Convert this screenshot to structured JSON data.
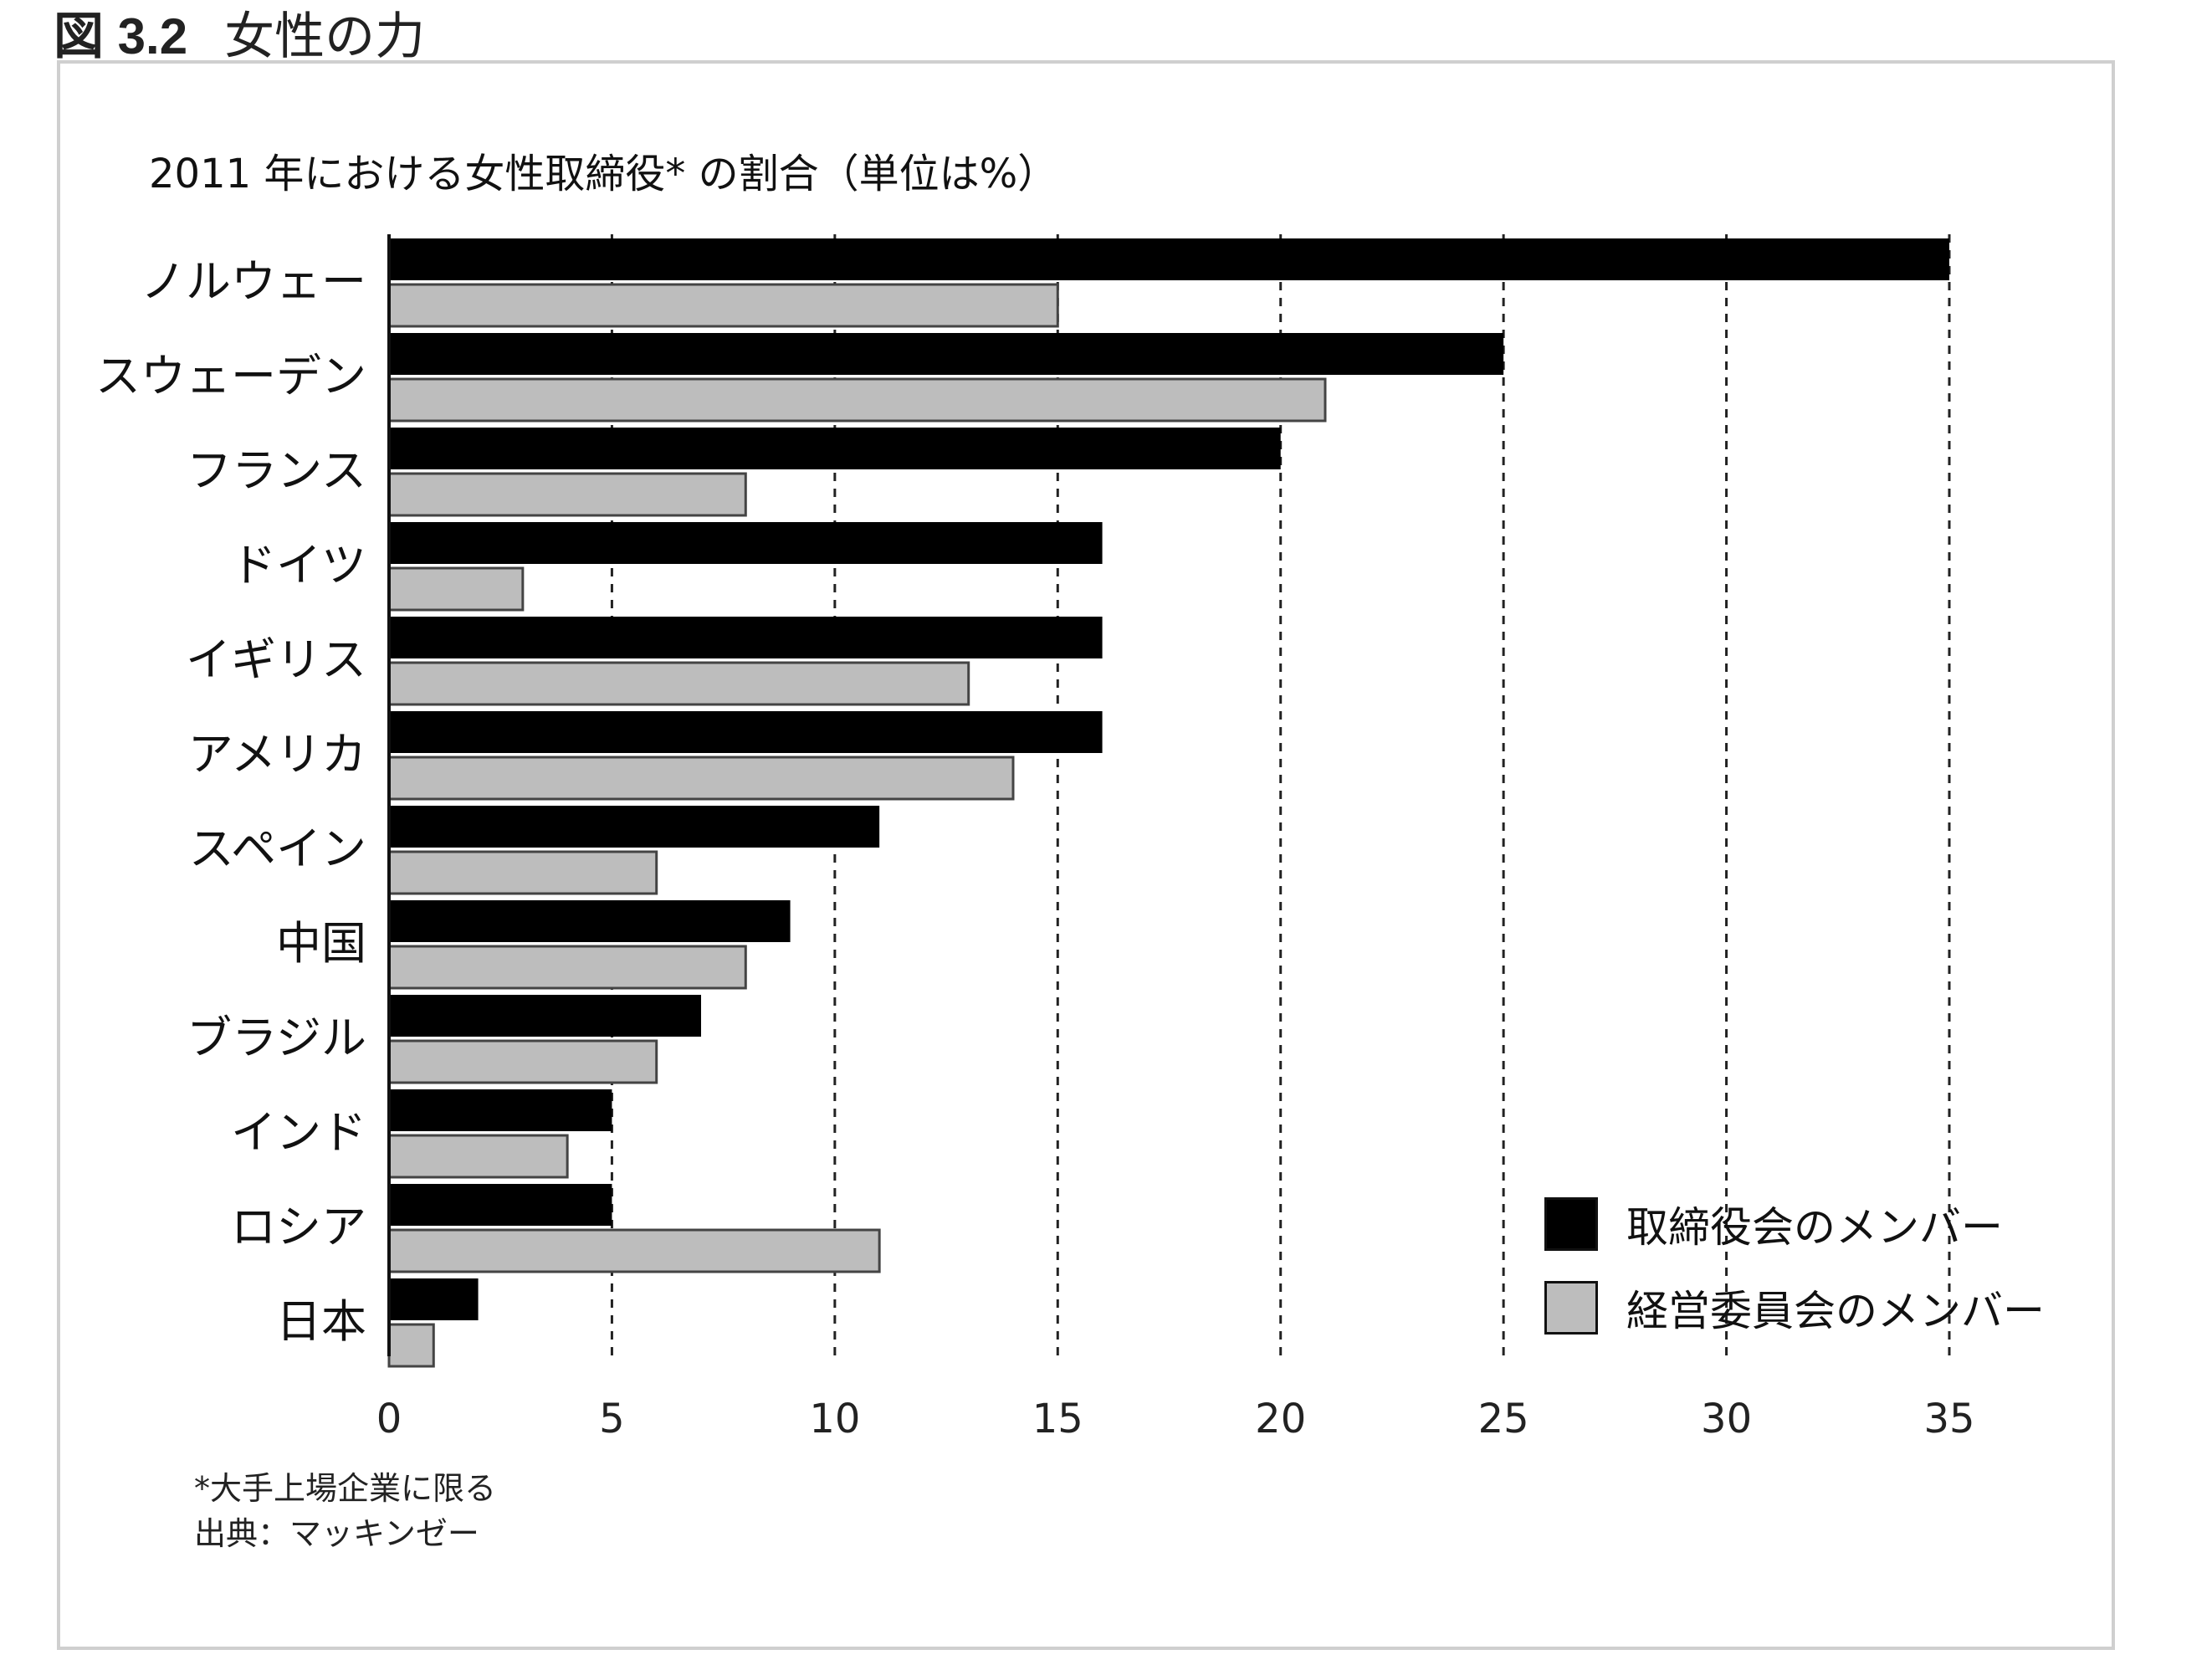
{
  "figure": {
    "number": "図 3.2",
    "title": "女性の力"
  },
  "chart_data": {
    "type": "bar",
    "orientation": "horizontal",
    "title": "2011 年における女性取締役* の割合（単位は%）",
    "categories": [
      "ノルウェー",
      "スウェーデン",
      "フランス",
      "ドイツ",
      "イギリス",
      "アメリカ",
      "スペイン",
      "中国",
      "ブラジル",
      "インド",
      "ロシア",
      "日本"
    ],
    "series": [
      {
        "name": "取締役会のメンバー",
        "color": "#000000",
        "values": [
          35,
          25,
          20,
          16,
          16,
          16,
          11,
          9,
          7,
          5,
          5,
          2
        ]
      },
      {
        "name": "経営委員会のメンバー",
        "color": "#bdbdbd",
        "values": [
          15,
          21,
          8,
          3,
          13,
          14,
          6,
          8,
          6,
          4,
          11,
          1
        ]
      }
    ],
    "xlim": [
      0,
      35
    ],
    "xticks": [
      0,
      5,
      10,
      15,
      20,
      25,
      30,
      35
    ],
    "grid": "dashed vertical lines at each tick",
    "legend": "bottom-right"
  },
  "footnote": {
    "note": "*大手上場企業に限る",
    "source": "出典：マッキンゼー"
  }
}
